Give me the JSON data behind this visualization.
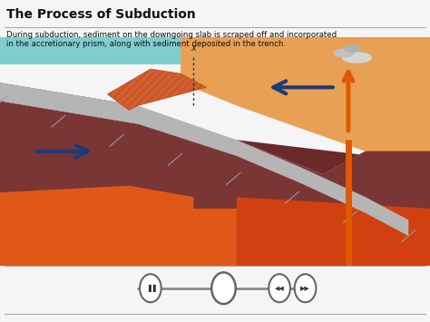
{
  "title": "The Process of Subduction",
  "description": "During subduction, sediment on the downgoing slab is scraped off and incorporated\nin the accretionary prism, along with sediment deposited in the trench.",
  "colors": {
    "bg_white": "#f5f5f5",
    "ocean_teal": "#7ecece",
    "continent_peach": "#e8a055",
    "dark_maroon": "#7a3535",
    "dark_maroon2": "#6a2a2a",
    "mantle_orange": "#e05818",
    "mantle_orange2": "#d04010",
    "slab_gray": "#b5b5b5",
    "slab_gray_light": "#c8c8c8",
    "acc_orange": "#d06030",
    "acc_orange2": "#c85020",
    "magma_orange": "#e05800",
    "arrow_blue": "#1e3a7a",
    "arrow_blue_fill": "#2a4a9a",
    "smoke_gray": "#c0c0c0",
    "smoke_gray2": "#d5d5d5",
    "text_dark": "#111111",
    "ctrl_gray": "#808080",
    "segment_line": "#999999",
    "trench_dark": "#552222",
    "black_border": "#1a1a1a"
  }
}
